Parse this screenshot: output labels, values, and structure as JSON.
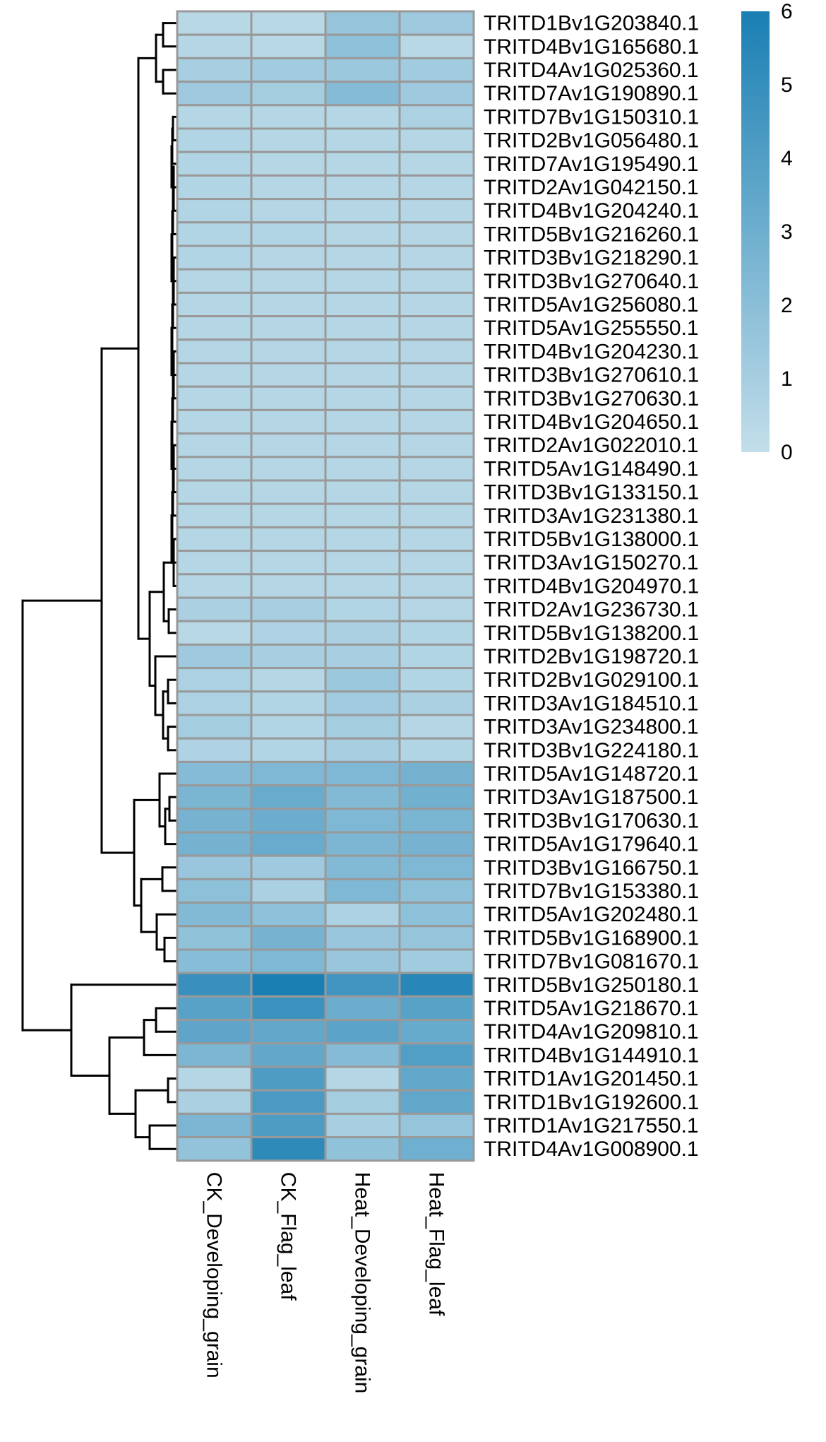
{
  "chart_data": {
    "type": "heatmap",
    "title": "",
    "rows": [
      "TRITD1Bv1G203840.1",
      "TRITD4Bv1G165680.1",
      "TRITD4Av1G025360.1",
      "TRITD7Av1G190890.1",
      "TRITD7Bv1G150310.1",
      "TRITD2Bv1G056480.1",
      "TRITD7Av1G195490.1",
      "TRITD2Av1G042150.1",
      "TRITD4Bv1G204240.1",
      "TRITD5Bv1G216260.1",
      "TRITD3Bv1G218290.1",
      "TRITD3Bv1G270640.1",
      "TRITD5Av1G256080.1",
      "TRITD5Av1G255550.1",
      "TRITD4Bv1G204230.1",
      "TRITD3Bv1G270610.1",
      "TRITD3Bv1G270630.1",
      "TRITD4Bv1G204650.1",
      "TRITD2Av1G022010.1",
      "TRITD5Av1G148490.1",
      "TRITD3Bv1G133150.1",
      "TRITD3Av1G231380.1",
      "TRITD5Bv1G138000.1",
      "TRITD3Av1G150270.1",
      "TRITD4Bv1G204970.1",
      "TRITD2Av1G236730.1",
      "TRITD5Bv1G138200.1",
      "TRITD2Bv1G198720.1",
      "TRITD2Bv1G029100.1",
      "TRITD3Av1G184510.1",
      "TRITD3Av1G234800.1",
      "TRITD3Bv1G224180.1",
      "TRITD5Av1G148720.1",
      "TRITD3Av1G187500.1",
      "TRITD3Bv1G170630.1",
      "TRITD5Av1G179640.1",
      "TRITD3Bv1G166750.1",
      "TRITD7Bv1G153380.1",
      "TRITD5Av1G202480.1",
      "TRITD5Bv1G168900.1",
      "TRITD7Bv1G081670.1",
      "TRITD5Bv1G250180.1",
      "TRITD5Av1G218670.1",
      "TRITD4Av1G209810.1",
      "TRITD4Bv1G144910.1",
      "TRITD1Av1G201450.1",
      "TRITD1Bv1G192600.1",
      "TRITD1Av1G217550.1",
      "TRITD4Av1G008900.1"
    ],
    "columns": [
      "CK_Developing_grain",
      "CK_Flag_leaf",
      "Heat_Developing_grain",
      "Heat_Flag_leaf"
    ],
    "values": [
      [
        0.4,
        0.4,
        1.6,
        1.3
      ],
      [
        0.5,
        0.4,
        1.9,
        0.4
      ],
      [
        1.0,
        1.2,
        1.4,
        1.2
      ],
      [
        1.3,
        1.1,
        2.2,
        1.3
      ],
      [
        0.5,
        0.5,
        0.5,
        0.8
      ],
      [
        0.6,
        0.5,
        0.5,
        0.5
      ],
      [
        0.6,
        0.5,
        0.5,
        0.5
      ],
      [
        0.6,
        0.5,
        0.5,
        0.5
      ],
      [
        0.6,
        0.5,
        0.5,
        0.5
      ],
      [
        0.6,
        0.6,
        0.5,
        0.5
      ],
      [
        0.6,
        0.5,
        0.5,
        0.5
      ],
      [
        0.5,
        0.5,
        0.5,
        0.5
      ],
      [
        0.5,
        0.5,
        0.5,
        0.5
      ],
      [
        0.5,
        0.5,
        0.5,
        0.5
      ],
      [
        0.5,
        0.5,
        0.5,
        0.5
      ],
      [
        0.5,
        0.5,
        0.5,
        0.5
      ],
      [
        0.5,
        0.5,
        0.5,
        0.5
      ],
      [
        0.5,
        0.5,
        0.5,
        0.5
      ],
      [
        0.5,
        0.5,
        0.5,
        0.5
      ],
      [
        0.5,
        0.5,
        0.5,
        0.5
      ],
      [
        0.5,
        0.5,
        0.5,
        0.5
      ],
      [
        0.5,
        0.5,
        0.5,
        0.5
      ],
      [
        0.5,
        0.5,
        0.5,
        0.5
      ],
      [
        0.5,
        0.5,
        0.5,
        0.5
      ],
      [
        0.5,
        0.5,
        0.5,
        0.5
      ],
      [
        0.9,
        1.0,
        0.6,
        0.5
      ],
      [
        0.4,
        0.7,
        0.9,
        0.6
      ],
      [
        1.3,
        1.0,
        1.0,
        0.6
      ],
      [
        0.8,
        0.5,
        1.4,
        0.6
      ],
      [
        0.8,
        0.6,
        1.2,
        0.9
      ],
      [
        1.1,
        0.6,
        1.1,
        0.5
      ],
      [
        0.7,
        0.6,
        1.0,
        0.6
      ],
      [
        2.2,
        2.4,
        2.4,
        2.8
      ],
      [
        2.6,
        3.2,
        2.3,
        2.9
      ],
      [
        2.7,
        3.1,
        2.4,
        2.6
      ],
      [
        2.8,
        3.2,
        2.5,
        2.7
      ],
      [
        1.5,
        1.3,
        2.3,
        2.4
      ],
      [
        1.9,
        0.9,
        2.4,
        1.9
      ],
      [
        2.3,
        1.9,
        0.8,
        1.9
      ],
      [
        1.8,
        2.7,
        1.5,
        1.6
      ],
      [
        2.1,
        2.4,
        1.5,
        1.2
      ],
      [
        4.9,
        6.0,
        4.6,
        5.5
      ],
      [
        3.8,
        4.8,
        3.1,
        3.8
      ],
      [
        3.6,
        3.5,
        3.7,
        3.3
      ],
      [
        2.5,
        3.4,
        2.2,
        4.0
      ],
      [
        0.5,
        4.2,
        0.5,
        3.5
      ],
      [
        0.9,
        4.3,
        1.1,
        3.5
      ],
      [
        2.5,
        4.2,
        1.0,
        1.6
      ],
      [
        1.7,
        5.3,
        1.8,
        3.0
      ]
    ],
    "colorbar": {
      "min": 0,
      "max": 6,
      "ticks": [
        "0",
        "1",
        "2",
        "3",
        "4",
        "5",
        "6"
      ],
      "low_color": "#c3deea",
      "high_color": "#1a7fb3"
    },
    "grid": true,
    "legend": "top-right"
  }
}
